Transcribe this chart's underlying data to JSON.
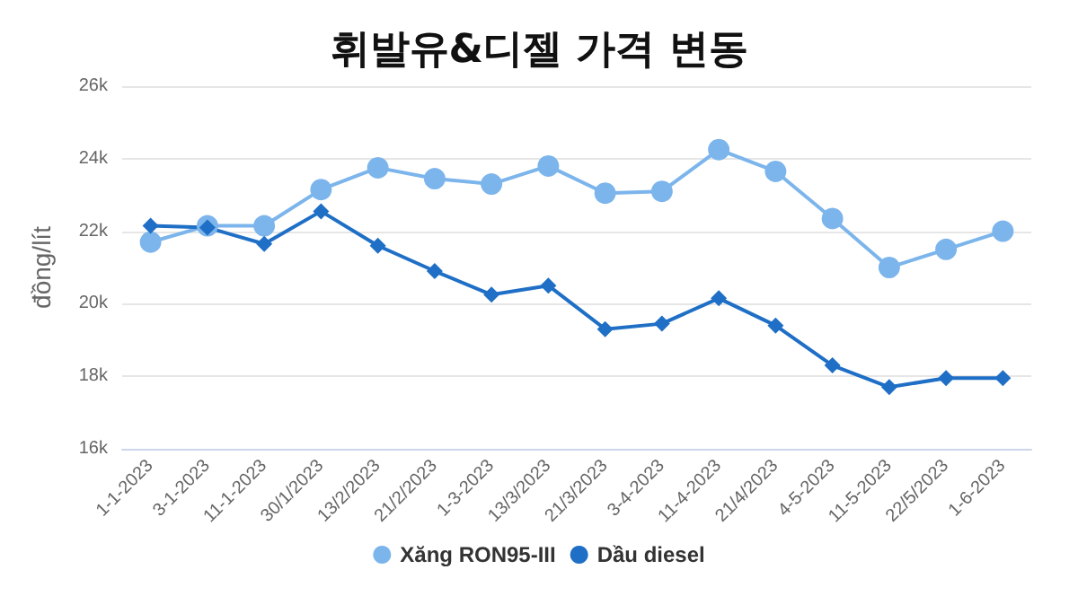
{
  "chart_data": {
    "type": "line",
    "title": "휘발유&디젤 가격 변동",
    "ylabel": "đồng/lít",
    "categories": [
      "1-1-2023",
      "3-1-2023",
      "11-1-2023",
      "30/1/2023",
      "13/2/2023",
      "21/2/2023",
      "1-3-2023",
      "13/3/2023",
      "21/3/2023",
      "3-4-2023",
      "11-4-2023",
      "21/4/2023",
      "4-5-2023",
      "11-5-2023",
      "22/5/2023",
      "1-6-2023"
    ],
    "series": [
      {
        "name": "Xăng RON95-III",
        "color": "#7cb5ec",
        "marker": "circle",
        "values": [
          21700,
          22150,
          22150,
          23150,
          23750,
          23450,
          23300,
          23800,
          23050,
          23100,
          24250,
          23650,
          22350,
          21000,
          21500,
          22000
        ]
      },
      {
        "name": "Dầu diesel",
        "color": "#1f6fc6",
        "marker": "diamond",
        "values": [
          22150,
          22100,
          21650,
          22550,
          21600,
          20900,
          20250,
          20500,
          19300,
          19450,
          20150,
          19400,
          18300,
          17700,
          17950,
          17950
        ]
      }
    ],
    "ylim": [
      16000,
      26000
    ],
    "yticks": [
      {
        "value": 16000,
        "label": "16k"
      },
      {
        "value": 18000,
        "label": "18k"
      },
      {
        "value": 20000,
        "label": "20k"
      },
      {
        "value": 22000,
        "label": "22k"
      },
      {
        "value": 24000,
        "label": "24k"
      },
      {
        "value": 26000,
        "label": "26k"
      }
    ],
    "grid": "y",
    "legend": "bottom"
  }
}
